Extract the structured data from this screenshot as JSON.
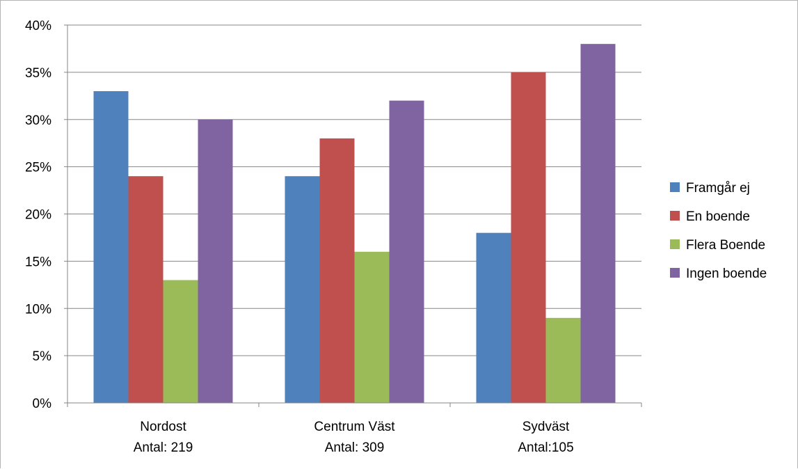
{
  "chart_data": {
    "type": "bar",
    "categories": [
      [
        "Nordost",
        "Antal: 219"
      ],
      [
        "Centrum Väst",
        "Antal: 309"
      ],
      [
        "Sydväst",
        "Antal:105"
      ]
    ],
    "series": [
      {
        "name": "Framgår ej",
        "color": "#4f81bd",
        "values": [
          33,
          24,
          18
        ]
      },
      {
        "name": "En boende",
        "color": "#c0504d",
        "values": [
          24,
          28,
          35
        ]
      },
      {
        "name": "Flera Boende",
        "color": "#9bbb59",
        "values": [
          13,
          16,
          9
        ]
      },
      {
        "name": "Ingen boende",
        "color": "#8064a2",
        "values": [
          30,
          32,
          38
        ]
      }
    ],
    "y_ticks": [
      "0%",
      "5%",
      "10%",
      "15%",
      "20%",
      "25%",
      "30%",
      "35%",
      "40%"
    ],
    "ylim": [
      0,
      40
    ],
    "y_unit": "%",
    "grid": true,
    "legend_position": "right",
    "title": "",
    "xlabel": "",
    "ylabel": ""
  }
}
